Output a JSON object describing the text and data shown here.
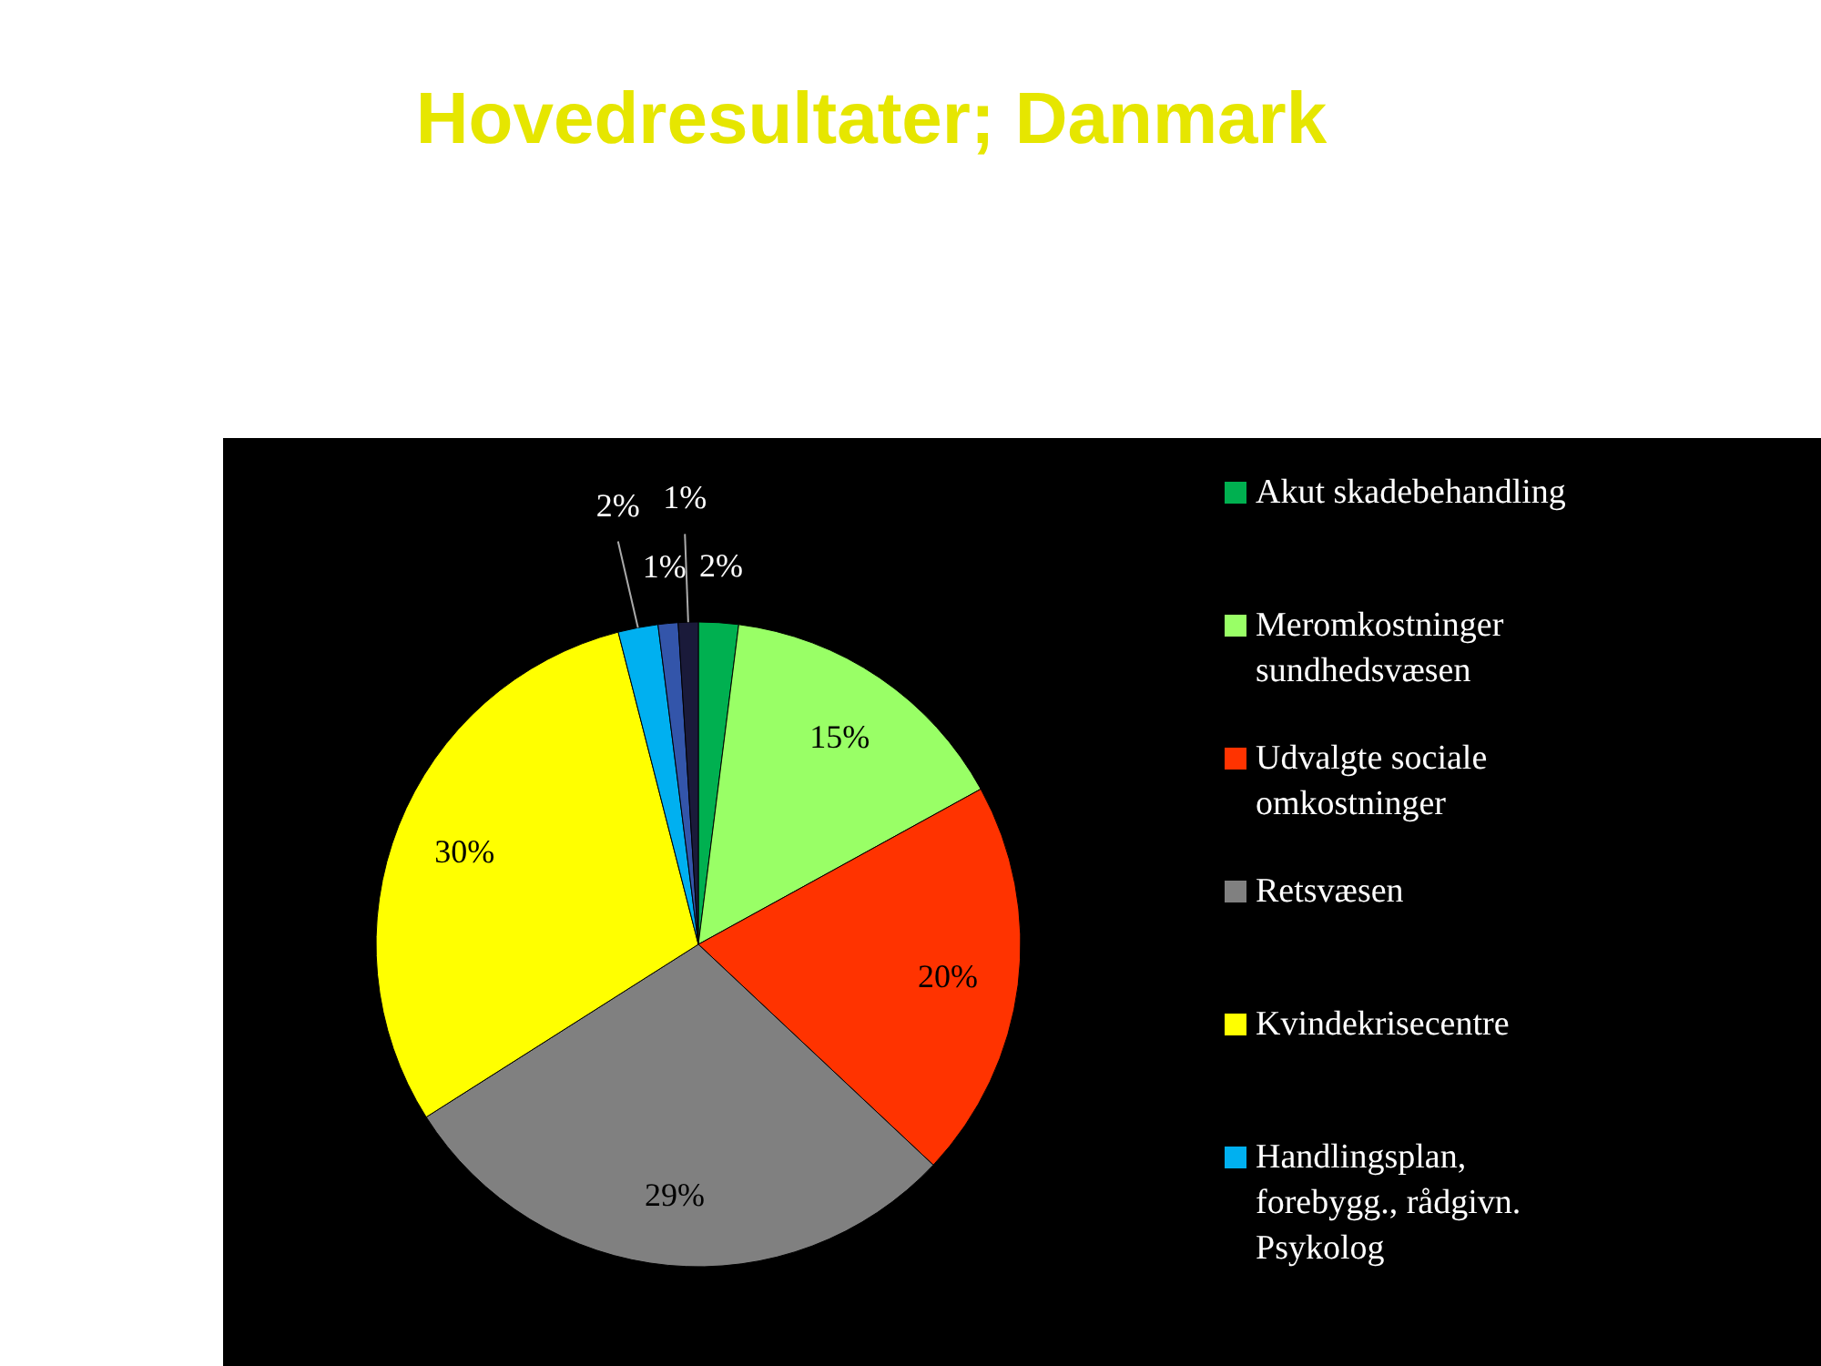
{
  "chart_data": {
    "type": "pie",
    "title": "Hovedresultater; Danmark",
    "categories": [
      "Akut skadebehandling",
      "Meromkostninger sundhedsvæsen",
      "Udvalgte sociale omkostninger",
      "Retsvæsen",
      "Kvindekrisecentre",
      "Handlingsplan, forebygg., rådgivn. Psykolog",
      null,
      null
    ],
    "values": [
      2,
      15,
      20,
      29,
      30,
      2,
      1,
      1
    ],
    "colors": [
      "#00b050",
      "#99ff66",
      "#ff3300",
      "#808080",
      "#ffff00",
      "#00b0f0",
      "#3355aa",
      "#1a1a3a"
    ],
    "value_labels": [
      "2%",
      "15%",
      "20%",
      "29%",
      "30%",
      "2%",
      "1%",
      "1%"
    ],
    "legend": "right"
  }
}
